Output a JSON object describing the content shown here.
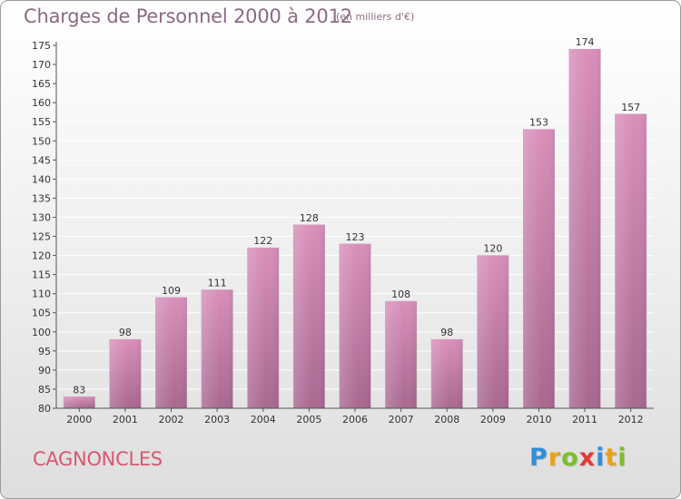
{
  "header": {
    "title": "Charges de Personnel 2000 à 2012",
    "subtitle": "(en milliers d'€)"
  },
  "footer": {
    "commune": "CAGNONCLES",
    "logo_letters": [
      "P",
      "r",
      "o",
      "x",
      "i",
      "t",
      "i"
    ],
    "logo_colors": [
      "#2f8fd8",
      "#e9a11c",
      "#7bbf2a",
      "#e23a3a",
      "#2f8fd8",
      "#e9a11c",
      "#7bbf2a"
    ]
  },
  "chart_data": {
    "type": "bar",
    "title": "Charges de Personnel 2000 à 2012",
    "subtitle": "(en milliers d'€)",
    "categories": [
      "2000",
      "2001",
      "2002",
      "2003",
      "2004",
      "2005",
      "2006",
      "2007",
      "2008",
      "2009",
      "2010",
      "2011",
      "2012"
    ],
    "values": [
      83,
      98,
      109,
      111,
      122,
      128,
      123,
      108,
      98,
      120,
      153,
      174,
      157
    ],
    "ylim": [
      80,
      175
    ],
    "yticks": [
      80,
      85,
      90,
      95,
      100,
      105,
      110,
      115,
      120,
      125,
      130,
      135,
      140,
      145,
      150,
      155,
      160,
      165,
      170,
      175
    ],
    "grid": true,
    "bar_color": "#d98fba",
    "bar_color_dark": "#a86890",
    "xlabel": "",
    "ylabel": ""
  }
}
